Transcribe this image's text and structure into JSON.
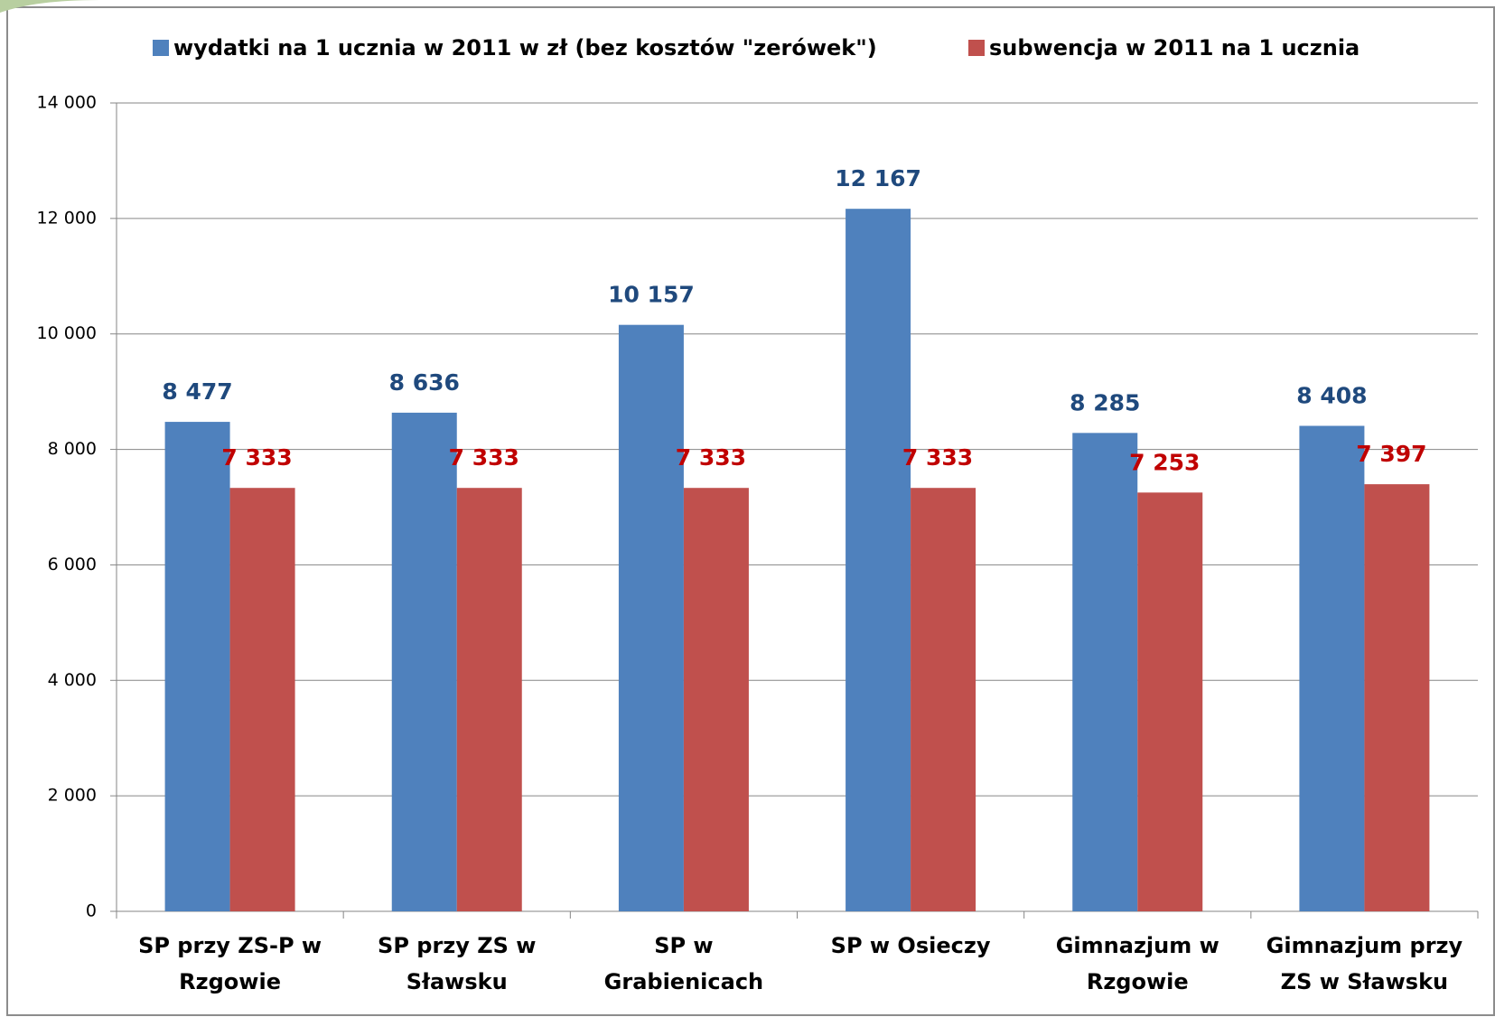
{
  "chart_data": {
    "type": "bar",
    "categories": [
      "SP przy ZS-P w Rzgowie",
      "SP przy ZS w Sławsku",
      "SP w Grabienicach",
      "SP w Osieczy",
      "Gimnazjum w Rzgowie",
      "Gimnazjum przy ZS w Sławsku"
    ],
    "series": [
      {
        "name": "wydatki na 1 ucznia w 2011 w zł (bez kosztów \"zerówek\")",
        "color": "#4f81bd",
        "label_color": "#1f497d",
        "values": [
          8477,
          8636,
          10157,
          12167,
          8285,
          8408
        ],
        "value_labels": [
          "8 477",
          "8 636",
          "10 157",
          "12 167",
          "8 285",
          "8 408"
        ]
      },
      {
        "name": "subwencja w 2011 na 1 ucznia",
        "color": "#c0504d",
        "label_color": "#c00000",
        "values": [
          7333,
          7333,
          7333,
          7333,
          7253,
          7397
        ],
        "value_labels": [
          "7 333",
          "7 333",
          "7 333",
          "7 333",
          "7 253",
          "7 397"
        ]
      }
    ],
    "ylim": [
      0,
      14000
    ],
    "yticks": [
      0,
      {
        "value": 2000,
        "label": "2 000"
      },
      {
        "value": 4000,
        "label": "4 000"
      },
      {
        "value": 6000,
        "label": "6 000"
      },
      {
        "value": 8000,
        "label": "8 000"
      },
      {
        "value": 10000,
        "label": "10 000"
      },
      {
        "value": 12000,
        "label": "12 000"
      },
      {
        "value": 14000,
        "label": "14 000"
      }
    ],
    "grid": true,
    "legend": "top"
  }
}
